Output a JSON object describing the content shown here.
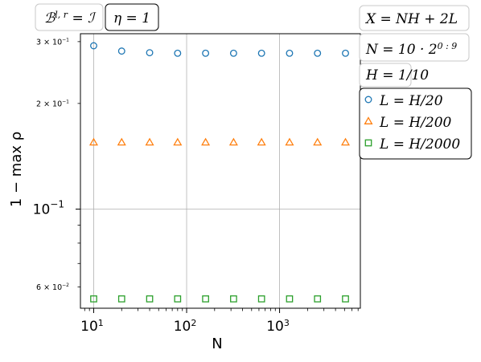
{
  "chart_data": {
    "type": "scatter",
    "title": "",
    "xlabel": "N",
    "ylabel": "1 − max ρ",
    "xscale": "log",
    "yscale": "log",
    "xlim": [
      7.2,
      7400
    ],
    "ylim": [
      0.0522,
      0.316
    ],
    "grid": true,
    "legend_position": "right, outside plot",
    "x": [
      10,
      20,
      40,
      80,
      160,
      320,
      640,
      1280,
      2560,
      5120
    ],
    "series": [
      {
        "name": "L = H/20",
        "marker": "circle",
        "color": "#1f77b4",
        "values": [
          0.292,
          0.282,
          0.279,
          0.278,
          0.278,
          0.278,
          0.278,
          0.278,
          0.278,
          0.278
        ]
      },
      {
        "name": "L = H/200",
        "marker": "triangle",
        "color": "#ff7f0e",
        "values": [
          0.155,
          0.155,
          0.155,
          0.155,
          0.155,
          0.155,
          0.155,
          0.155,
          0.155,
          0.155
        ]
      },
      {
        "name": "L = H/2000",
        "marker": "square",
        "color": "#2ca02c",
        "values": [
          0.0555,
          0.0555,
          0.0555,
          0.0555,
          0.0555,
          0.0555,
          0.0555,
          0.0555,
          0.0555,
          0.0555
        ]
      }
    ],
    "x_ticks": [
      {
        "value": 10,
        "base": "10",
        "exp": "1"
      },
      {
        "value": 100,
        "base": "10",
        "exp": "2"
      },
      {
        "value": 1000,
        "base": "10",
        "exp": "3"
      }
    ],
    "y_ticks": [
      {
        "value": 0.3,
        "label": "3 × 10",
        "exp": "−1",
        "size": "small"
      },
      {
        "value": 0.2,
        "label": "2 × 10",
        "exp": "−1",
        "size": "small"
      },
      {
        "value": 0.1,
        "label": "10",
        "exp": "−1",
        "size": "large"
      },
      {
        "value": 0.06,
        "label": "6 × 10",
        "exp": "−2",
        "size": "small"
      }
    ],
    "annotations": {
      "top_left": [
        {
          "id": "operator",
          "parts": [
            {
              "t": "ℬ"
            },
            {
              "t": "l, r",
              "sup": true
            },
            {
              "t": " = ℐ"
            }
          ]
        },
        {
          "id": "eta",
          "parts": [
            {
              "t": "η = 1"
            }
          ]
        }
      ],
      "right": [
        {
          "id": "x-def",
          "parts": [
            {
              "t": "X = NH + 2L"
            }
          ]
        },
        {
          "id": "n-def",
          "parts": [
            {
              "t": "N = 10 · 2"
            },
            {
              "t": "0 : 9",
              "sup": true
            }
          ]
        },
        {
          "id": "h-def",
          "parts": [
            {
              "t": "H = 1/10"
            }
          ]
        }
      ]
    }
  }
}
